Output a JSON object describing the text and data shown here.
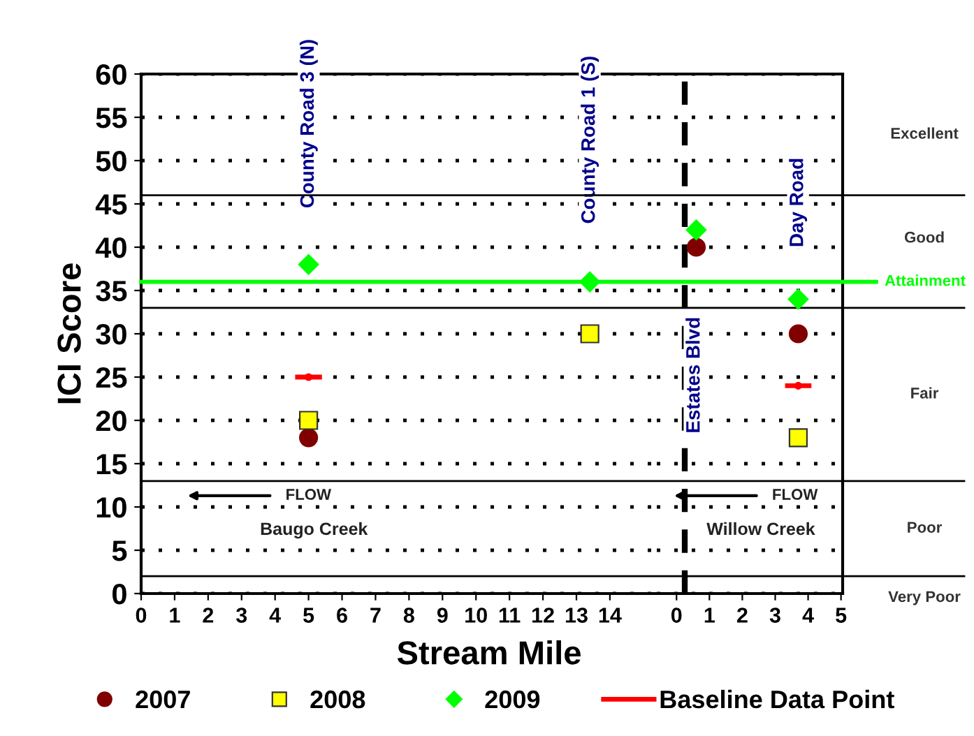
{
  "chart_data": [
    {
      "type": "scatter",
      "xlabel": "Stream Mile",
      "ylabel": "ICI Score",
      "xlim": [
        0,
        15.4
      ],
      "ylim": [
        0,
        60
      ],
      "xticks": [
        0,
        1,
        2,
        3,
        4,
        5,
        6,
        7,
        8,
        9,
        10,
        11,
        12,
        13,
        14
      ],
      "yticks": [
        0,
        5,
        10,
        15,
        20,
        25,
        30,
        35,
        40,
        45,
        50,
        55,
        60
      ],
      "grid": "y",
      "legend": "bottom",
      "series": [
        {
          "name": "2007",
          "color": "#800000",
          "marker": "circle",
          "x": [
            5
          ],
          "values": [
            18
          ]
        },
        {
          "name": "2008",
          "color": "#ffff00",
          "marker": "square",
          "x": [
            5,
            13.4
          ],
          "values": [
            20,
            30
          ]
        },
        {
          "name": "2009",
          "color": "#00ff00",
          "marker": "diamond",
          "x": [
            5,
            13.4
          ],
          "values": [
            38,
            36
          ]
        },
        {
          "name": "Baseline Data Point",
          "color": "#ff0000",
          "x": [
            5
          ],
          "values": [
            25
          ],
          "xerrors": [
            0.4
          ]
        }
      ],
      "annotations": [
        "County Road 3 (N)",
        "County Road 1 (S)",
        "FLOW",
        "Baugo Creek"
      ]
    },
    {
      "type": "scatter",
      "xlim": [
        -0.6,
        5.05
      ],
      "ylim": [
        0,
        60
      ],
      "tick_labels": "x",
      "xticks": [
        0,
        1,
        2,
        3,
        4,
        5
      ],
      "yticks": [
        0,
        5,
        10,
        15,
        20,
        25,
        30,
        35,
        40,
        45,
        50,
        55,
        60
      ],
      "grid": "y",
      "series": [
        {
          "color": "#800000",
          "marker": "circle",
          "x": [
            0.6,
            3.7
          ],
          "values": [
            40,
            30
          ]
        },
        {
          "color": "#ffff00",
          "marker": "square",
          "x": [
            3.7
          ],
          "values": [
            18
          ]
        },
        {
          "color": "#00ff00",
          "marker": "diamond",
          "x": [
            0.6,
            3.7
          ],
          "values": [
            42,
            34
          ]
        },
        {
          "color": "#ff0000",
          "x": [
            3.7
          ],
          "values": [
            24
          ],
          "xerrors": [
            0.4
          ]
        }
      ],
      "ref_lines": [
        {
          "axis": "y",
          "value": 46,
          "color": "#000000"
        },
        {
          "axis": "y",
          "value": 33,
          "color": "#000000"
        },
        {
          "axis": "y",
          "value": 13,
          "color": "#000000"
        },
        {
          "axis": "y",
          "value": 2,
          "color": "#000000"
        },
        {
          "axis": "y",
          "value": 36,
          "label": "Attainment",
          "color": "#00ff00"
        },
        {
          "axis": "x",
          "value": 0.25,
          "label": "Estates Blvd",
          "color": "#000000",
          "line_style": "dashed"
        }
      ],
      "annotations": [
        "Day Road",
        "FLOW",
        "Willow Creek",
        "Excellent",
        "Good",
        "Fair",
        "Poor",
        "Very Poor"
      ]
    }
  ]
}
